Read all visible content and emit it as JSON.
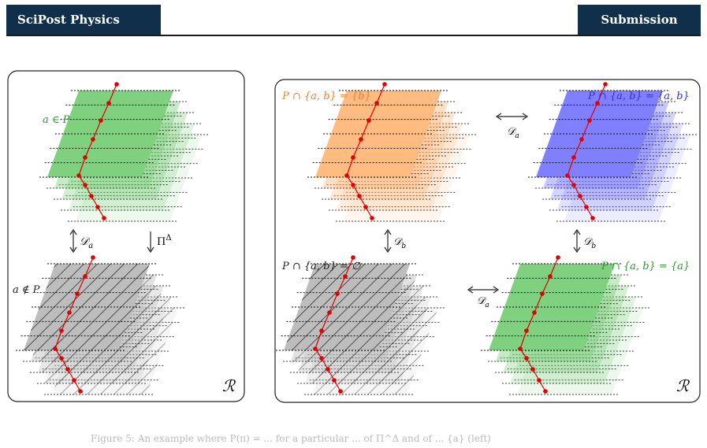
{
  "header": {
    "journal": "SciPost Physics",
    "tag": "Submission"
  },
  "figure": {
    "left_panel": {
      "top_label": "a ∈ P",
      "bottom_label": "a ∉ P",
      "arrow_d": "𝒟",
      "arrow_d_sub": "a",
      "arrow_pi": "Π",
      "arrow_pi_sup": "Δ",
      "corner": "ℛ"
    },
    "right_panel": {
      "tl_label": "P ∩ {a, b} = {b}",
      "tr_label": "P ∩ {a, b} = {a, b}",
      "bl_label": "P ∩ {a, b} = ∅",
      "br_label": "P ∩ {a, b} = {a}",
      "arrow_top": "𝒟",
      "arrow_top_sub": "a",
      "arrow_bottom": "𝒟",
      "arrow_bottom_sub": "a",
      "arrow_left": "𝒟",
      "arrow_left_sub": "b",
      "arrow_right": "𝒟",
      "arrow_right_sub": "b",
      "corner": "ℛ"
    },
    "colors": {
      "green": "#7fd07f",
      "orange": "#ffbb80",
      "blue": "#8080ff",
      "gray": "#bdbdbd",
      "red": "#e00000",
      "green_text": "#2e9a2e",
      "orange_text": "#f08030",
      "blue_text": "#3030e0"
    }
  },
  "caption": "Figure 5: An example where P(π) = ... for a particular ... of Π^Δ and of ... {a} (left)"
}
